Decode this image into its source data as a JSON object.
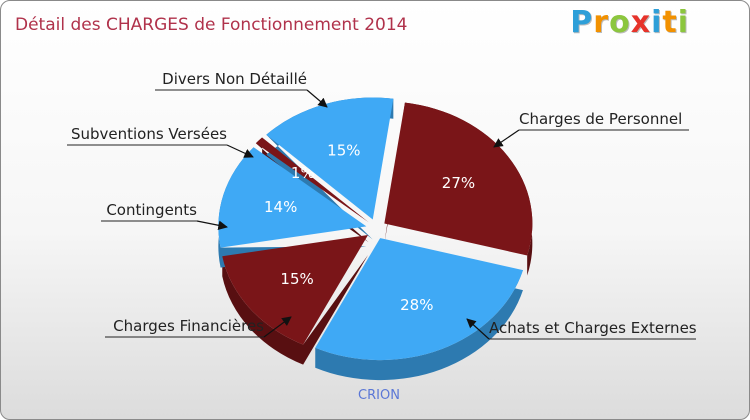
{
  "chart_data": {
    "type": "pie",
    "title": "Détail des CHARGES de Fonctionnement 2014",
    "slices": [
      {
        "label": "Charges de Personnel",
        "value": 27,
        "pct_label": "27%",
        "color": "#7a1518"
      },
      {
        "label": "Achats et Charges Externes",
        "value": 28,
        "pct_label": "28%",
        "color": "#3fa9f5"
      },
      {
        "label": "Charges Financières",
        "value": 15,
        "pct_label": "15%",
        "color": "#7a1518"
      },
      {
        "label": "Contingents",
        "value": 14,
        "pct_label": "14%",
        "color": "#3fa9f5"
      },
      {
        "label": "Subventions Versées",
        "value": 1,
        "pct_label": "1%",
        "color": "#7a1518"
      },
      {
        "label": "Divers Non Détaillé",
        "value": 15,
        "pct_label": "15%",
        "color": "#3fa9f5"
      }
    ],
    "footer": "CRION"
  },
  "logo": {
    "letters": [
      "P",
      "r",
      "o",
      "x",
      "i",
      "t",
      "i"
    ],
    "colors": [
      "#2e9fd8",
      "#f29100",
      "#8cc63e",
      "#e6332a",
      "#2e9fd8",
      "#f29100",
      "#8cc63e"
    ]
  }
}
